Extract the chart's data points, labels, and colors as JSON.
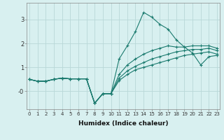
{
  "xlabel": "Humidex (Indice chaleur)",
  "background_color": "#d8f0f0",
  "grid_color": "#b8d8d8",
  "line_color": "#1a7a6e",
  "x": [
    0,
    1,
    2,
    3,
    4,
    5,
    6,
    7,
    8,
    9,
    10,
    11,
    12,
    13,
    14,
    15,
    16,
    17,
    18,
    19,
    20,
    21,
    22,
    23
  ],
  "lines": [
    [
      0.5,
      0.42,
      0.42,
      0.5,
      0.55,
      0.52,
      0.52,
      0.52,
      -0.5,
      -0.1,
      -0.1,
      1.35,
      1.9,
      2.5,
      3.3,
      3.1,
      2.8,
      2.6,
      2.15,
      1.85,
      1.6,
      1.1,
      1.45,
      1.5
    ],
    [
      0.5,
      0.42,
      0.42,
      0.5,
      0.55,
      0.52,
      0.52,
      0.52,
      -0.5,
      -0.1,
      -0.1,
      0.7,
      1.1,
      1.35,
      1.55,
      1.7,
      1.8,
      1.9,
      1.85,
      1.85,
      1.9,
      1.9,
      1.9,
      1.8
    ],
    [
      0.5,
      0.42,
      0.42,
      0.5,
      0.55,
      0.52,
      0.52,
      0.52,
      -0.5,
      -0.1,
      -0.1,
      0.55,
      0.85,
      1.05,
      1.2,
      1.35,
      1.45,
      1.55,
      1.65,
      1.7,
      1.75,
      1.75,
      1.8,
      1.7
    ],
    [
      0.5,
      0.42,
      0.42,
      0.5,
      0.55,
      0.52,
      0.52,
      0.52,
      -0.5,
      -0.1,
      -0.1,
      0.45,
      0.7,
      0.9,
      1.0,
      1.1,
      1.2,
      1.3,
      1.4,
      1.5,
      1.55,
      1.6,
      1.65,
      1.55
    ]
  ],
  "ylim": [
    -0.75,
    3.7
  ],
  "xlim": [
    -0.3,
    23.3
  ],
  "ytick_positions": [
    0,
    1,
    2,
    3
  ],
  "ytick_labels": [
    "-0",
    "1",
    "2",
    "3"
  ],
  "xtick_labels": [
    "0",
    "1",
    "2",
    "3",
    "4",
    "5",
    "6",
    "7",
    "8",
    "9",
    "10",
    "11",
    "12",
    "13",
    "14",
    "15",
    "16",
    "17",
    "18",
    "19",
    "20",
    "21",
    "22",
    "23"
  ]
}
